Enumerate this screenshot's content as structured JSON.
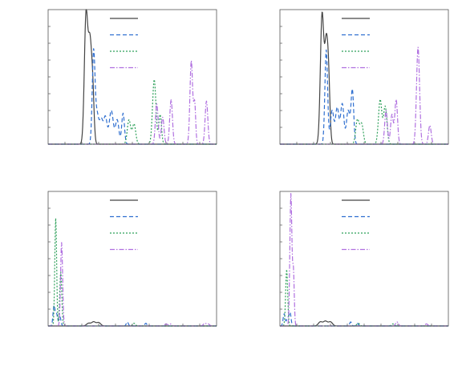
{
  "chart_data": [
    {
      "type": "line",
      "title": "",
      "xlabel": "",
      "ylabel": "",
      "xlim": [
        0,
        100
      ],
      "ylim": [
        0,
        1.0
      ],
      "grid": false,
      "legend": "top-right",
      "series": [
        {
          "color": "#444444",
          "style": "solid",
          "peaks": [
            [
              22.5,
              0.95,
              1.0
            ],
            [
              24.8,
              0.72,
              1.0
            ],
            [
              26.5,
              0.35,
              0.8
            ]
          ]
        },
        {
          "color": "#2f6fd0",
          "style": "dashed",
          "peaks": [
            [
              27.0,
              0.68,
              0.8
            ],
            [
              29.0,
              0.22,
              1.0
            ],
            [
              31.5,
              0.18,
              1.0
            ],
            [
              34.0,
              0.2,
              1.0
            ],
            [
              37.5,
              0.25,
              1.2
            ],
            [
              41.0,
              0.18,
              1.0
            ],
            [
              44.5,
              0.23,
              0.8
            ]
          ]
        },
        {
          "color": "#2ea05a",
          "style": "dotted",
          "peaks": [
            [
              48.0,
              0.18,
              1.0
            ],
            [
              51.0,
              0.15,
              1.0
            ],
            [
              63.0,
              0.48,
              1.0
            ],
            [
              66.5,
              0.22,
              0.8
            ]
          ]
        },
        {
          "color": "#b070e0",
          "style": "dashdot",
          "peaks": [
            [
              64.5,
              0.3,
              0.8
            ],
            [
              68.0,
              0.2,
              0.8
            ],
            [
              73.0,
              0.33,
              0.8
            ],
            [
              85.0,
              0.62,
              0.8
            ],
            [
              87.0,
              0.3,
              0.6
            ],
            [
              94.0,
              0.32,
              0.8
            ]
          ]
        }
      ]
    },
    {
      "type": "line",
      "title": "",
      "xlabel": "",
      "ylabel": "",
      "xlim": [
        0,
        100
      ],
      "ylim": [
        0,
        1.0
      ],
      "grid": false,
      "legend": "top-right",
      "series": [
        {
          "color": "#444444",
          "style": "solid",
          "peaks": [
            [
              25.0,
              0.95,
              1.0
            ],
            [
              27.5,
              0.72,
              1.0
            ],
            [
              29.0,
              0.35,
              0.8
            ]
          ]
        },
        {
          "color": "#2f6fd0",
          "style": "dashed",
          "peaks": [
            [
              27.5,
              0.7,
              0.8
            ],
            [
              31.0,
              0.25,
              1.0
            ],
            [
              34.0,
              0.27,
              1.0
            ],
            [
              37.0,
              0.3,
              1.0
            ],
            [
              40.5,
              0.25,
              1.0
            ],
            [
              43.0,
              0.4,
              0.8
            ]
          ]
        },
        {
          "color": "#2ea05a",
          "style": "dotted",
          "peaks": [
            [
              46.0,
              0.18,
              1.0
            ],
            [
              48.5,
              0.15,
              1.0
            ],
            [
              59.5,
              0.33,
              1.0
            ],
            [
              62.5,
              0.28,
              1.0
            ]
          ]
        },
        {
          "color": "#b070e0",
          "style": "dashdot",
          "peaks": [
            [
              63.0,
              0.25,
              0.8
            ],
            [
              66.5,
              0.22,
              0.8
            ],
            [
              69.0,
              0.33,
              0.8
            ],
            [
              82.0,
              0.72,
              0.9
            ],
            [
              89.0,
              0.14,
              0.8
            ]
          ]
        }
      ]
    },
    {
      "type": "line",
      "title": "",
      "xlabel": "",
      "ylabel": "",
      "xlim": [
        0,
        100
      ],
      "ylim": [
        0,
        1.0
      ],
      "grid": false,
      "legend": "top-right",
      "series": [
        {
          "color": "#444444",
          "style": "solid",
          "peaks": [
            [
              24.0,
              0.02,
              1.2
            ],
            [
              27.0,
              0.03,
              1.2
            ],
            [
              30.0,
              0.025,
              1.2
            ]
          ]
        },
        {
          "color": "#2f6fd0",
          "style": "dashed",
          "peaks": [
            [
              3.5,
              0.15,
              0.6
            ],
            [
              5.0,
              0.09,
              0.6
            ],
            [
              7.0,
              0.07,
              0.6
            ],
            [
              47.0,
              0.03,
              0.6
            ],
            [
              58.0,
              0.02,
              0.6
            ]
          ]
        },
        {
          "color": "#2ea05a",
          "style": "dotted",
          "peaks": [
            [
              4.5,
              0.8,
              0.55
            ],
            [
              7.5,
              0.4,
              0.6
            ],
            [
              51.0,
              0.02,
              0.8
            ]
          ]
        },
        {
          "color": "#b070e0",
          "style": "dashdot",
          "peaks": [
            [
              8.0,
              0.62,
              0.6
            ],
            [
              70.0,
              0.015,
              0.8
            ],
            [
              72.5,
              0.015,
              0.8
            ],
            [
              93.0,
              0.02,
              0.8
            ],
            [
              95.0,
              0.015,
              0.8
            ]
          ]
        }
      ]
    },
    {
      "type": "line",
      "title": "",
      "xlabel": "",
      "ylabel": "",
      "xlim": [
        0,
        100
      ],
      "ylim": [
        0,
        1.0
      ],
      "grid": false,
      "legend": "top-right",
      "series": [
        {
          "color": "#444444",
          "style": "solid",
          "peaks": [
            [
              24.0,
              0.03,
              1.2
            ],
            [
              27.0,
              0.035,
              1.2
            ],
            [
              30.0,
              0.03,
              1.2
            ]
          ]
        },
        {
          "color": "#2f6fd0",
          "style": "dashed",
          "peaks": [
            [
              2.5,
              0.09,
              0.6
            ],
            [
              4.5,
              0.06,
              0.6
            ],
            [
              6.0,
              0.1,
              0.6
            ],
            [
              42.0,
              0.03,
              0.6
            ],
            [
              46.0,
              0.02,
              0.6
            ]
          ]
        },
        {
          "color": "#2ea05a",
          "style": "dotted",
          "peaks": [
            [
              4.0,
              0.42,
              0.6
            ],
            [
              46.5,
              0.02,
              0.8
            ],
            [
              67.0,
              0.015,
              0.8
            ]
          ]
        },
        {
          "color": "#b070e0",
          "style": "dashdot",
          "peaks": [
            [
              6.5,
              0.98,
              0.6
            ],
            [
              8.0,
              0.4,
              0.5
            ],
            [
              69.5,
              0.03,
              0.8
            ],
            [
              87.0,
              0.015,
              0.8
            ]
          ]
        }
      ]
    }
  ]
}
